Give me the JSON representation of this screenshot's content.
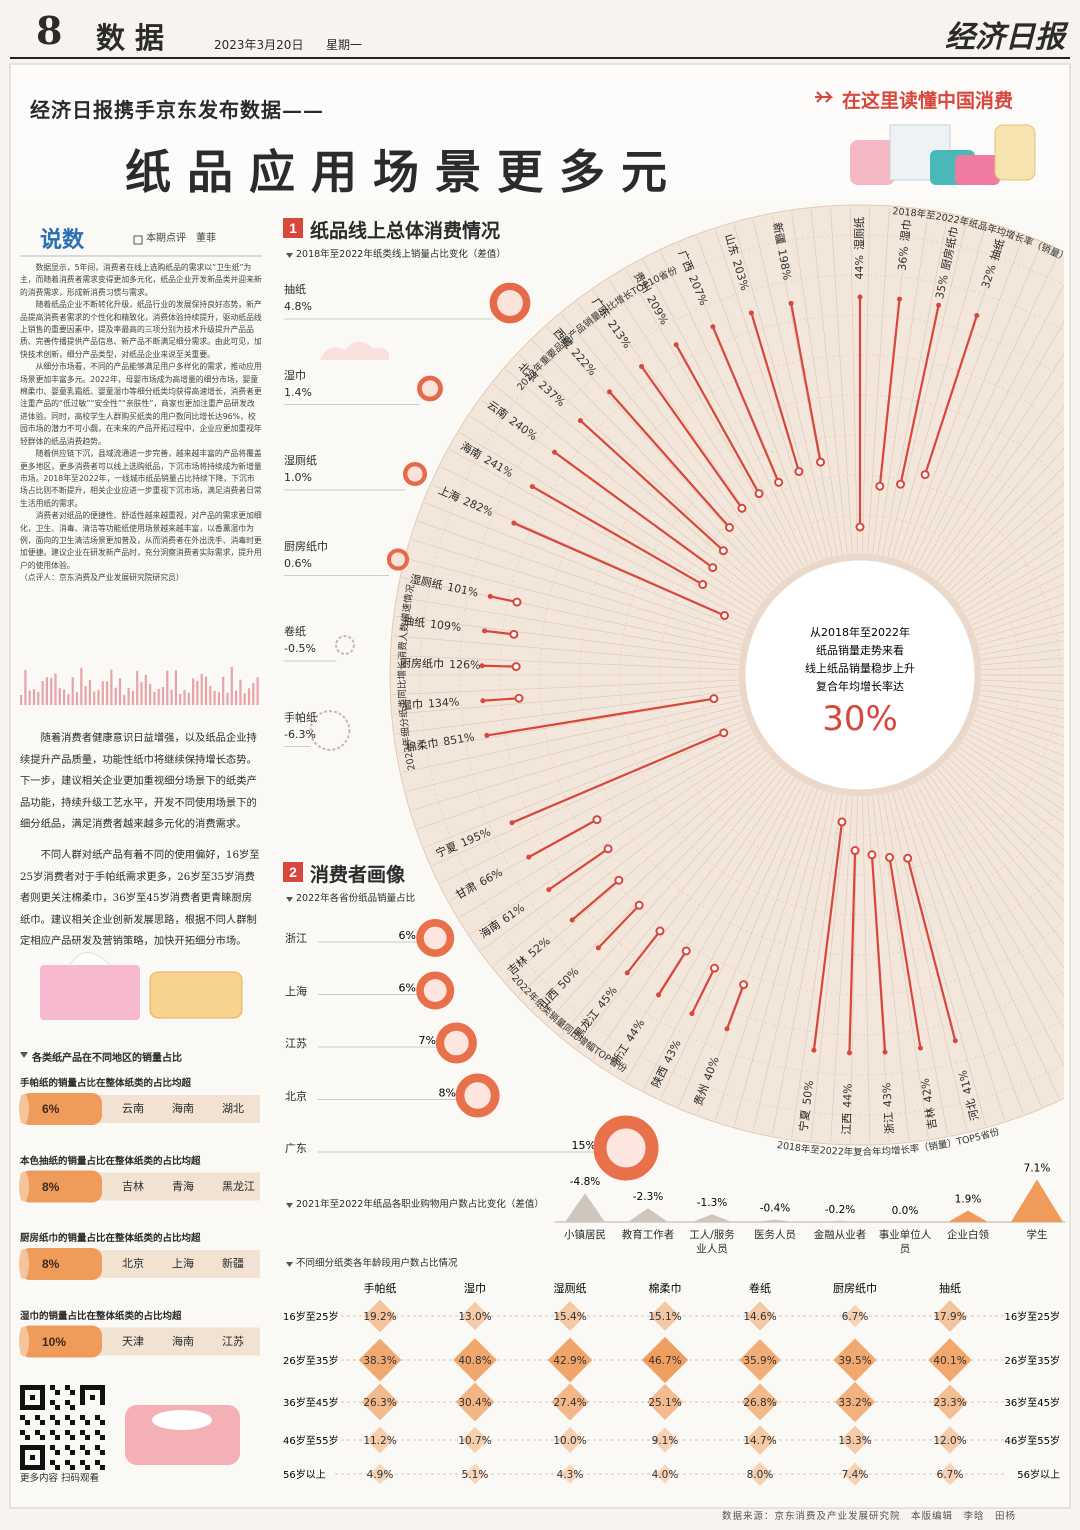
{
  "header": {
    "page_number": "8",
    "section": "数据",
    "date": "2023年3月20日",
    "weekday": "星期一",
    "paper": "经济日报"
  },
  "headline": {
    "kicker": "经济日报携手京东发布数据——",
    "title": "纸品应用场景更多元",
    "banner": "在这里读懂中国消费"
  },
  "column": {
    "title": "说数",
    "byline": "本期点评　董菲",
    "paragraphs": [
      "数据显示，5年间，消费者在线上选购纸品的需求以“卫生纸”为主，而随着消费者需求变得更加多元化，纸品企业开发新品类并迎来新的消费需求，形成新消费习惯与需求。",
      "随着纸品企业不断转化升级，纸品行业的发展保持良好态势，新产品提高消费者需求的个性化和精致化，消费体验持续提升，驱动纸品线上销售的重要因素中，提及率最高的三项分别为技术升级提升产品品质、完善传播提供产品信息、新产品不断满足细分需求。由此可见，加快技术创新，细分产品类型，对纸品企业来说至关重要。",
      "从细分市场看，不同的产品能够满足用户多样化的需求，推动应用场景更加丰富多元。2022年，母婴市场成为高增量的细分市场，婴童棉柔巾、婴童乳霜纸、婴童湿巾等细分纸类均获得高速增长，消费者更注重产品的“低过敏”“安全性”“亲肤性”，商家也更加注重产品研发改进体验。同时，高校学生人群购买纸类的用户数同比增长达96%，校园市场的潜力不可小觑，在未来的产品开拓过程中，企业应更加重视年轻群体的纸品消费趋势。",
      "随着供应链下沉，县域流通进一步完善，越来越丰富的产品将覆盖更多地区，更多消费者可以线上选购纸品，下沉市场将持续成为新增量市场。2018年至2022年，一线城市纸品销量占比持续下降，下沉市场占比则不断提升，相关企业应进一步重视下沉市场，满足消费者日常生活用纸的需求。",
      "消费者对纸品的便捷性、舒适性越来越重视，对产品的需求更加细化，卫生、消毒、清洁等功能纸使用场景越来越丰富，以香薰湿巾为例，面向的卫生清洁场景更加普及，从而消费者在外出洗手、消毒时更加便捷。建议企业在研发新产品时，充分洞察消费者实际需求，提升用户的使用体验。"
    ],
    "commentator": "（点评人：京东消费及产业发展研究院研究员）",
    "notes": [
      "随着消费者健康意识日益增强，以及纸品企业持续提升产品质量，功能性纸巾将继续保持增长态势。下一步，建议相关企业更加重视细分场景下的纸类产品功能，持续升级工艺水平，开发不同使用场景下的细分纸品，满足消费者越来越多元化的消费需求。",
      "不同人群对纸产品有着不同的使用偏好，16岁至25岁消费者对于手帕纸需求更多，26岁至35岁消费者则更关注棉柔巾，36岁至45岁消费者更青睐厨房纸巾。建议相关企业创新发展思路，根据不同人群制定相应产品研发及营销策略，加快开拓细分市场。"
    ]
  },
  "section1": {
    "number": "1",
    "title": "纸品线上总体消费情况",
    "share_change": {
      "title": "2018年至2022年纸类线上销量占比变化（差值）",
      "items": [
        {
          "name": "抽纸",
          "value": "4.8%"
        },
        {
          "name": "湿巾",
          "value": "1.4%"
        },
        {
          "name": "湿厕纸",
          "value": "1.0%"
        },
        {
          "name": "厨房纸巾",
          "value": "0.6%"
        },
        {
          "name": "卷纸",
          "value": "-0.5%"
        },
        {
          "name": "手帕纸",
          "value": "-6.3%"
        }
      ]
    },
    "radial": {
      "center": [
        "从2018年至2022年",
        "纸品销量走势来看",
        "线上纸品销量稳步上升",
        "复合年均增长率达"
      ],
      "center_value": "30%",
      "groups": [
        {
          "title": "2022年重要品类产品销量同比增长TOP10省份",
          "items": [
            {
              "name": "新疆",
              "value": "198%"
            },
            {
              "name": "山东",
              "value": "203%"
            },
            {
              "name": "广西",
              "value": "207%"
            },
            {
              "name": "贵州",
              "value": "209%"
            },
            {
              "name": "广东",
              "value": "213%"
            },
            {
              "name": "西藏",
              "value": "222%"
            },
            {
              "name": "北京",
              "value": "237%"
            },
            {
              "name": "云南",
              "value": "240%"
            },
            {
              "name": "海南",
              "value": "241%"
            },
            {
              "name": "上海",
              "value": "282%"
            }
          ]
        },
        {
          "title": "2018年至2022年纸品年均增长率（销量）",
          "items": [
            {
              "name": "湿厕纸",
              "value": "44%"
            },
            {
              "name": "湿巾",
              "value": "36%"
            },
            {
              "name": "厨房纸巾",
              "value": "35%"
            },
            {
              "name": "抽纸",
              "value": "32%"
            }
          ]
        },
        {
          "title": "2022年细分纸类同比增长消费人数增速情况",
          "items": [
            {
              "name": "湿厕纸",
              "value": "101%"
            },
            {
              "name": "抽纸",
              "value": "109%"
            },
            {
              "name": "厨房纸巾",
              "value": "126%"
            },
            {
              "name": "湿巾",
              "value": "134%"
            },
            {
              "name": "棉柔巾",
              "value": "851%"
            }
          ]
        },
        {
          "title": "2022年纸类销量同比增幅TOP省份",
          "items": [
            {
              "name": "宁夏",
              "value": "195%"
            },
            {
              "name": "甘肃",
              "value": "66%"
            },
            {
              "name": "海南",
              "value": "61%"
            },
            {
              "name": "吉林",
              "value": "52%"
            },
            {
              "name": "山西",
              "value": "50%"
            },
            {
              "name": "黑龙江",
              "value": "45%"
            },
            {
              "name": "浙江",
              "value": "44%"
            },
            {
              "name": "陕西",
              "value": "43%"
            },
            {
              "name": "贵州",
              "value": "40%"
            }
          ]
        },
        {
          "title": "2018年至2022年复合年均增长率（销量）TOP5省份",
          "items": [
            {
              "name": "宁夏",
              "value": "50%"
            },
            {
              "name": "江西",
              "value": "44%"
            },
            {
              "name": "浙江",
              "value": "43%"
            },
            {
              "name": "吉林",
              "value": "42%"
            },
            {
              "name": "河北",
              "value": "41%"
            }
          ]
        }
      ]
    }
  },
  "section2": {
    "number": "2",
    "title": "消费者画像",
    "province_share": {
      "title": "2022年各省份纸品销量占比",
      "items": [
        {
          "name": "浙江",
          "value": "6%"
        },
        {
          "name": "上海",
          "value": "6%"
        },
        {
          "name": "江苏",
          "value": "7%"
        },
        {
          "name": "北京",
          "value": "8%"
        },
        {
          "name": "广东",
          "value": "15%"
        }
      ]
    },
    "occupation": {
      "title": "2021年至2022年纸品各职业购物用户数占比变化（差值）",
      "items": [
        {
          "name": "小镇居民",
          "value": "-4.8%"
        },
        {
          "name": "教育工作者",
          "value": "-2.3%"
        },
        {
          "name": "工人/服务业人员",
          "value": "-1.3%"
        },
        {
          "name": "医务人员",
          "value": "-0.4%"
        },
        {
          "name": "金融从业者",
          "value": "-0.2%"
        },
        {
          "name": "事业单位人员",
          "value": "0.0%"
        },
        {
          "name": "企业白领",
          "value": "1.9%"
        },
        {
          "name": "学生",
          "value": "7.1%"
        }
      ]
    },
    "age": {
      "title": "不同细分纸类各年龄段用户数占比情况",
      "columns": [
        "手帕纸",
        "湿巾",
        "湿厕纸",
        "棉柔巾",
        "卷纸",
        "厨房纸巾",
        "抽纸"
      ],
      "rows": [
        {
          "label": "16岁至25岁",
          "values": [
            "19.2%",
            "13.0%",
            "15.4%",
            "15.1%",
            "14.6%",
            "6.7%",
            "17.9%"
          ]
        },
        {
          "label": "26岁至35岁",
          "values": [
            "38.3%",
            "40.8%",
            "42.9%",
            "46.7%",
            "35.9%",
            "39.5%",
            "40.1%"
          ]
        },
        {
          "label": "36岁至45岁",
          "values": [
            "26.3%",
            "30.4%",
            "27.4%",
            "25.1%",
            "26.8%",
            "33.2%",
            "23.3%"
          ]
        },
        {
          "label": "46岁至55岁",
          "values": [
            "11.2%",
            "10.7%",
            "10.0%",
            "9.1%",
            "14.7%",
            "13.3%",
            "12.0%"
          ]
        },
        {
          "label": "56岁以上",
          "values": [
            "4.9%",
            "5.1%",
            "4.3%",
            "4.0%",
            "8.0%",
            "7.4%",
            "6.7%"
          ]
        }
      ]
    }
  },
  "regional": {
    "title": "各类纸产品在不同地区的销量占比",
    "items": [
      {
        "heading": "手帕纸的销量占比在整体纸类的占比均超",
        "value": "6%",
        "provinces": [
          "云南",
          "海南",
          "湖北"
        ]
      },
      {
        "heading": "本色抽纸的销量占比在整体纸类的占比均超",
        "value": "8%",
        "provinces": [
          "吉林",
          "青海",
          "黑龙江"
        ]
      },
      {
        "heading": "厨房纸巾的销量占比在整体纸类的占比均超",
        "value": "8%",
        "provinces": [
          "北京",
          "上海",
          "新疆"
        ]
      },
      {
        "heading": "湿巾的销量占比在整体纸类的占比均超",
        "value": "10%",
        "provinces": [
          "天津",
          "海南",
          "江苏"
        ]
      }
    ]
  },
  "qr": {
    "caption": "更多内容 扫码观看"
  },
  "footer": "数据来源：京东消费及产业发展研究院　本版编辑　李晗　田杨"
}
